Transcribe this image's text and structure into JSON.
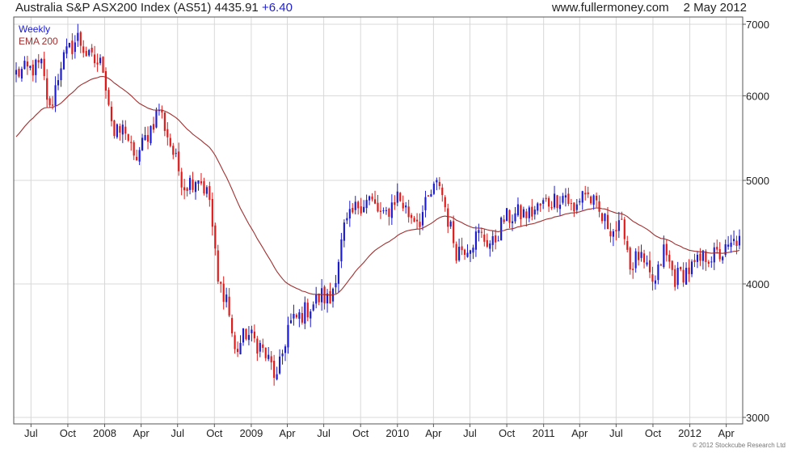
{
  "header": {
    "title": "Australia S&P ASX200 Index (AS51)",
    "last": "4435.91",
    "change": "+6.40",
    "site": "www.fullermoney.com",
    "date": "2 May 2012"
  },
  "copyright": "© 2012 Stockcube Research Ltd",
  "colors": {
    "up": "#1a1ad0",
    "down": "#e01818",
    "ema": "#a03030",
    "grid": "#d8d8d8",
    "frame": "#555555"
  },
  "chart_data": {
    "type": "candlestick",
    "frequency": "Weekly",
    "series": [
      {
        "name": "Weekly"
      },
      {
        "name": "EMA 200"
      }
    ],
    "ylim": [
      3000,
      7000
    ],
    "yscale": "log",
    "y_ticks": [
      3000,
      4000,
      5000,
      6000,
      7000
    ],
    "x_ticks": [
      "Jul",
      "Oct",
      "2008",
      "Apr",
      "Jul",
      "Oct",
      "2009",
      "Apr",
      "Jul",
      "Oct",
      "2010",
      "Apr",
      "Jul",
      "Oct",
      "2011",
      "Apr",
      "Jul",
      "Oct",
      "2012",
      "Apr"
    ],
    "x_tick_dates": [
      "2007-07",
      "2007-10",
      "2008-01",
      "2008-04",
      "2008-07",
      "2008-10",
      "2009-01",
      "2009-04",
      "2009-07",
      "2009-10",
      "2010-01",
      "2010-04",
      "2010-07",
      "2010-10",
      "2011-01",
      "2011-04",
      "2011-07",
      "2011-10",
      "2012-01",
      "2012-04"
    ],
    "xlim": [
      "2007-05-25",
      "2012-05-04"
    ],
    "grid": true,
    "legend_position": "top-left",
    "close_anchors": [
      [
        "2007-05-25",
        6300
      ],
      [
        "2007-06-29",
        6350
      ],
      [
        "2007-07-27",
        6400
      ],
      [
        "2007-08-17",
        5800
      ],
      [
        "2007-09-14",
        6450
      ],
      [
        "2007-10-26",
        6800
      ],
      [
        "2007-11-23",
        6500
      ],
      [
        "2007-12-28",
        6400
      ],
      [
        "2008-01-25",
        5500
      ],
      [
        "2008-02-22",
        5600
      ],
      [
        "2008-03-14",
        5200
      ],
      [
        "2008-04-25",
        5600
      ],
      [
        "2008-05-16",
        5850
      ],
      [
        "2008-06-27",
        5200
      ],
      [
        "2008-07-18",
        4950
      ],
      [
        "2008-08-22",
        5050
      ],
      [
        "2008-09-19",
        4800
      ],
      [
        "2008-10-10",
        4000
      ],
      [
        "2008-10-31",
        3900
      ],
      [
        "2008-11-21",
        3450
      ],
      [
        "2008-12-19",
        3600
      ],
      [
        "2009-01-23",
        3500
      ],
      [
        "2009-02-20",
        3350
      ],
      [
        "2009-03-06",
        3250
      ],
      [
        "2009-04-03",
        3650
      ],
      [
        "2009-05-08",
        3750
      ],
      [
        "2009-06-26",
        3900
      ],
      [
        "2009-07-17",
        3850
      ],
      [
        "2009-08-21",
        4500
      ],
      [
        "2009-09-25",
        4750
      ],
      [
        "2009-10-23",
        4800
      ],
      [
        "2009-11-27",
        4600
      ],
      [
        "2009-12-31",
        4850
      ],
      [
        "2010-01-29",
        4650
      ],
      [
        "2010-02-26",
        4600
      ],
      [
        "2010-03-26",
        4850
      ],
      [
        "2010-04-16",
        4980
      ],
      [
        "2010-05-07",
        4600
      ],
      [
        "2010-05-28",
        4300
      ],
      [
        "2010-06-25",
        4350
      ],
      [
        "2010-07-23",
        4450
      ],
      [
        "2010-08-27",
        4350
      ],
      [
        "2010-09-24",
        4600
      ],
      [
        "2010-10-29",
        4650
      ],
      [
        "2010-11-26",
        4650
      ],
      [
        "2010-12-31",
        4750
      ],
      [
        "2011-01-28",
        4800
      ],
      [
        "2011-02-25",
        4850
      ],
      [
        "2011-03-18",
        4650
      ],
      [
        "2011-04-08",
        4900
      ],
      [
        "2011-04-29",
        4800
      ],
      [
        "2011-05-27",
        4600
      ],
      [
        "2011-06-24",
        4500
      ],
      [
        "2011-07-22",
        4500
      ],
      [
        "2011-08-05",
        4150
      ],
      [
        "2011-08-26",
        4250
      ],
      [
        "2011-09-23",
        4050
      ],
      [
        "2011-10-07",
        4000
      ],
      [
        "2011-10-28",
        4300
      ],
      [
        "2011-11-25",
        4050
      ],
      [
        "2011-12-16",
        4100
      ],
      [
        "2012-01-13",
        4150
      ],
      [
        "2012-02-10",
        4250
      ],
      [
        "2012-03-09",
        4250
      ],
      [
        "2012-04-06",
        4300
      ],
      [
        "2012-05-04",
        4436
      ]
    ]
  }
}
